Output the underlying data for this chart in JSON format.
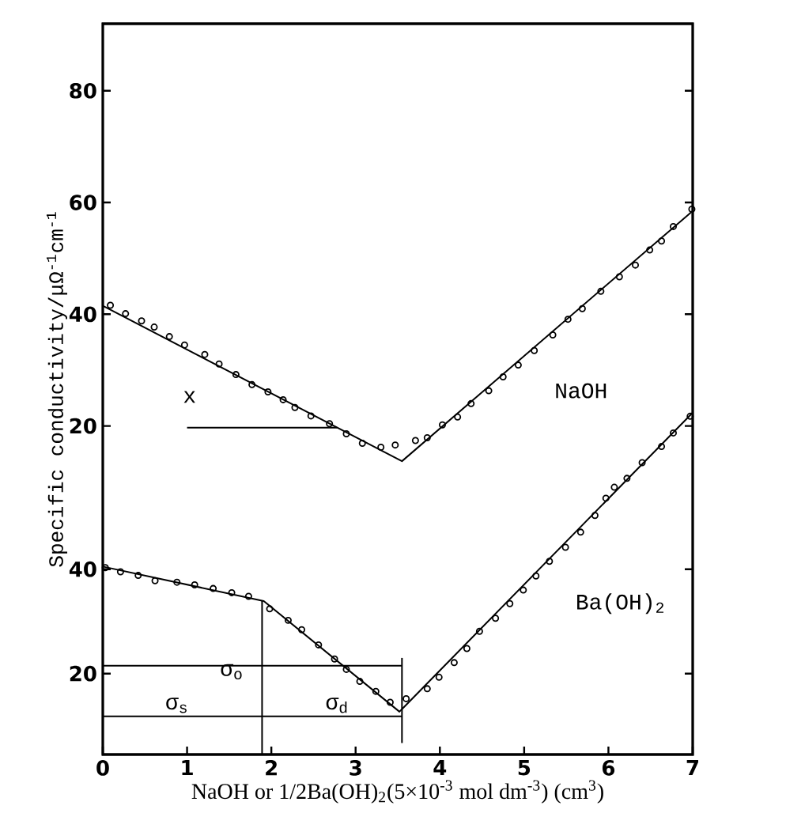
{
  "chart_data": {
    "type": "scatter",
    "xlabel": "NaOH or 1/2Ba(OH)$_{2}$(5×10$^{-3}$ mol dm$^{-3}$) (cm$^{3}$)",
    "ylabel": "Specific conductivity/μΩ$^{-1}$cm$^{-1}$",
    "xlim": [
      0,
      7
    ],
    "xticks": [
      0,
      1,
      2,
      3,
      4,
      5,
      6,
      7
    ],
    "ylim": [
      -38.8,
      92
    ],
    "yticks": [
      20,
      40,
      60,
      80
    ],
    "y2lim": [
      4.5,
      144.5
    ],
    "y2ticks": [
      20,
      40
    ],
    "series": [
      {
        "type": "scatter",
        "name": "NaOH",
        "marker": "circle",
        "color": "#000000",
        "x": [
          0.09,
          0.27,
          0.46,
          0.61,
          0.79,
          0.97,
          1.21,
          1.38,
          1.58,
          1.77,
          1.96,
          2.14,
          2.28,
          2.47,
          2.69,
          2.89,
          3.08,
          3.3,
          3.47,
          3.71,
          3.85,
          4.03,
          4.21,
          4.37,
          4.58,
          4.75,
          4.93,
          5.12,
          5.34,
          5.52,
          5.69,
          5.91,
          6.13,
          6.32,
          6.49,
          6.63,
          6.77,
          6.99
        ],
        "values": [
          41.6,
          40.1,
          38.8,
          37.7,
          36.0,
          34.5,
          32.8,
          31.1,
          29.2,
          27.4,
          26.1,
          24.7,
          23.3,
          21.8,
          20.4,
          18.6,
          16.9,
          16.2,
          16.6,
          17.4,
          17.9,
          20.2,
          21.6,
          24.0,
          26.3,
          28.8,
          30.9,
          33.5,
          36.3,
          39.1,
          41.0,
          44.1,
          46.7,
          48.8,
          51.5,
          53.1,
          55.7,
          58.8
        ]
      },
      {
        "type": "line",
        "marker": "none",
        "color": "#000000",
        "x": [
          0,
          3.55,
          7
        ],
        "values": [
          41.5,
          13.7,
          58.5
        ]
      },
      {
        "type": "line",
        "marker": "none",
        "color": "#000000",
        "x": [
          1.0,
          2.78
        ],
        "values": [
          19.7,
          19.7
        ]
      },
      {
        "type": "scatter",
        "name": "Ba(OH)$_{2}$",
        "marker": "circle",
        "axis": "y2",
        "color": "#000000",
        "x": [
          0.03,
          0.21,
          0.42,
          0.62,
          0.88,
          1.09,
          1.31,
          1.53,
          1.73,
          1.98,
          2.2,
          2.36,
          2.56,
          2.75,
          2.89,
          3.05,
          3.24,
          3.41,
          3.6,
          3.85,
          3.99,
          4.17,
          4.32,
          4.47,
          4.66,
          4.83,
          4.99,
          5.14,
          5.3,
          5.49,
          5.67,
          5.84,
          5.97,
          6.07,
          6.22,
          6.4,
          6.63,
          6.77,
          6.97
        ],
        "values": [
          40.3,
          39.5,
          38.8,
          37.8,
          37.5,
          37.0,
          36.3,
          35.5,
          34.8,
          32.4,
          30.2,
          28.4,
          25.5,
          22.8,
          20.8,
          18.5,
          16.6,
          14.5,
          15.2,
          17.1,
          19.3,
          22.1,
          24.8,
          28.1,
          30.6,
          33.4,
          36.0,
          38.7,
          41.5,
          44.2,
          47.1,
          50.3,
          53.6,
          55.7,
          57.4,
          60.4,
          63.5,
          66.1,
          69.3
        ]
      },
      {
        "type": "line",
        "marker": "none",
        "axis": "y2",
        "color": "#000000",
        "x": [
          0,
          1.91,
          3.52,
          7
        ],
        "values": [
          40.5,
          33.9,
          12.7,
          70
        ]
      },
      {
        "type": "line",
        "marker": "none",
        "axis": "y2",
        "color": "#000000",
        "x": [
          0,
          3.55
        ],
        "values": [
          21.5,
          21.5
        ]
      },
      {
        "type": "line",
        "marker": "none",
        "axis": "y2",
        "color": "#000000",
        "x": [
          0,
          1.89,
          3.55
        ],
        "values": [
          11.8,
          11.8,
          11.8
        ]
      },
      {
        "type": "line",
        "marker": "none",
        "axis": "y2",
        "color": "#000000",
        "x": [
          1.89,
          1.89
        ],
        "values": [
          33.9,
          4.5
        ]
      },
      {
        "type": "line",
        "marker": "none",
        "axis": "y2",
        "color": "#000000",
        "x": [
          3.55,
          3.55
        ],
        "values": [
          23,
          6.7
        ]
      }
    ],
    "annotations": [
      {
        "text": "x",
        "x": 1.03,
        "y": 25.2
      },
      {
        "text": "σ$_{o}$",
        "x": 1.53,
        "y": -24.0
      },
      {
        "text": "σ$_{s}$",
        "x": 0.88,
        "y": -30.0
      },
      {
        "text": "σ$_{d}$",
        "x": 2.78,
        "y": -30.0
      }
    ]
  }
}
